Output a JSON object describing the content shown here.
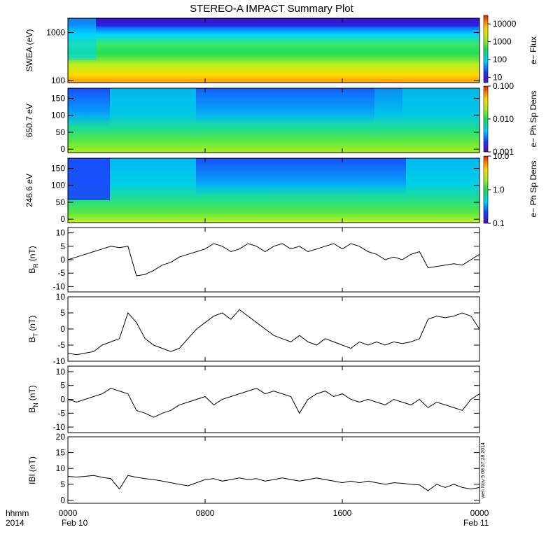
{
  "title": "STEREO-A IMPACT Summary Plot",
  "footer": {
    "time_label": "hhmm",
    "year_label": "2014",
    "date_start": "Feb 10",
    "date_end": "Feb 11",
    "x_ticks": [
      "0000",
      "0800",
      "1600",
      "0000"
    ]
  },
  "side_stamp": "wen Nov 5 08:37:28 2014",
  "chart_data": [
    {
      "id": "swea",
      "type": "heatmap",
      "ylabel": "SWEA (eV)",
      "yscale": "log",
      "yticks": [
        "1000",
        "100"
      ],
      "ytick_values": [
        1000,
        100
      ],
      "ylim": [
        90,
        2000
      ],
      "colorbar": {
        "label": "e− Flux",
        "scale": "log",
        "ticks": [
          "10000",
          "1000",
          "100",
          "10"
        ],
        "tick_values": [
          10000,
          1000,
          100,
          10
        ],
        "range": [
          5,
          30000
        ]
      },
      "colors": [
        "#5a0ca8",
        "#1a3cff",
        "#00d4ff",
        "#22dd55",
        "#a8f020",
        "#ffd800",
        "#ff8a00",
        "#e31a1c"
      ]
    },
    {
      "id": "pad650",
      "type": "heatmap",
      "ylabel": "650.7 eV",
      "ylim": [
        -10,
        180
      ],
      "yticks": [
        "150",
        "100",
        "50",
        "0"
      ],
      "ytick_values": [
        150,
        100,
        50,
        0
      ],
      "colorbar": {
        "label": "e− Ph Sp Dens",
        "scale": "log",
        "ticks": [
          "0.100",
          "0.010",
          "0.001"
        ],
        "tick_values": [
          0.1,
          0.01,
          0.001
        ],
        "range": [
          0.001,
          0.1
        ]
      }
    },
    {
      "id": "pad246",
      "type": "heatmap",
      "ylabel": "246.6 eV",
      "ylim": [
        -10,
        180
      ],
      "yticks": [
        "150",
        "100",
        "50",
        "0"
      ],
      "ytick_values": [
        150,
        100,
        50,
        0
      ],
      "colorbar": {
        "label": "e− Ph Sp Dens",
        "scale": "log",
        "ticks": [
          "10.0",
          "1.0",
          "0.1"
        ],
        "tick_values": [
          10,
          1,
          0.1
        ],
        "range": [
          0.1,
          10
        ]
      }
    },
    {
      "id": "br",
      "type": "line",
      "ylabel": "B",
      "ylabel_sub": "R",
      "ylabel_unit": "(nT)",
      "ylim": [
        -12,
        12
      ],
      "yticks": [
        "10",
        "5",
        "0",
        "-5",
        "-10"
      ],
      "ytick_values": [
        10,
        5,
        0,
        -5,
        -10
      ],
      "x": [
        0,
        0.5,
        1,
        1.5,
        2,
        2.5,
        3,
        3.5,
        4,
        4.5,
        5,
        5.5,
        6,
        6.5,
        7,
        7.5,
        8,
        8.5,
        9,
        9.5,
        10,
        10.5,
        11,
        11.5,
        12,
        12.5,
        13,
        13.5,
        14,
        14.5,
        15,
        15.5,
        16,
        16.5,
        17,
        17.5,
        18,
        18.5,
        19,
        19.5,
        20,
        20.5,
        21,
        21.5,
        22,
        22.5,
        23,
        23.5,
        24
      ],
      "values": [
        0,
        1,
        2,
        3,
        4,
        5,
        4.5,
        5,
        -6,
        -5.5,
        -4,
        -2,
        -1,
        1,
        2,
        3,
        4,
        6,
        5,
        3,
        4,
        6,
        5,
        3,
        5,
        6,
        4,
        5,
        3,
        4,
        5,
        6,
        4,
        6,
        5,
        3,
        2,
        0,
        1,
        0,
        2,
        3,
        -3,
        -2.5,
        -2,
        -1.5,
        -2,
        0,
        2
      ]
    },
    {
      "id": "bt",
      "type": "line",
      "ylabel": "B",
      "ylabel_sub": "T",
      "ylabel_unit": "(nT)",
      "ylim": [
        -10,
        10
      ],
      "yticks": [
        "10",
        "5",
        "0",
        "-5",
        "-10"
      ],
      "ytick_values": [
        10,
        5,
        0,
        -5,
        -10
      ],
      "x": [
        0,
        0.5,
        1,
        1.5,
        2,
        2.5,
        3,
        3.5,
        4,
        4.5,
        5,
        5.5,
        6,
        6.5,
        7,
        7.5,
        8,
        8.5,
        9,
        9.5,
        10,
        10.5,
        11,
        11.5,
        12,
        12.5,
        13,
        13.5,
        14,
        14.5,
        15,
        15.5,
        16,
        16.5,
        17,
        17.5,
        18,
        18.5,
        19,
        19.5,
        20,
        20.5,
        21,
        21.5,
        22,
        22.5,
        23,
        23.5,
        24
      ],
      "values": [
        -7.5,
        -8,
        -7.5,
        -7,
        -5,
        -4,
        -3,
        5,
        2,
        -3,
        -5,
        -6,
        -7,
        -6,
        -3,
        0,
        2,
        4,
        5,
        3,
        6,
        4,
        2,
        0,
        -2,
        -3,
        -4,
        -2,
        -4,
        -5,
        -3,
        -4,
        -5,
        -6,
        -4,
        -5,
        -4,
        -5,
        -4,
        -4.5,
        -4,
        -3,
        3,
        4,
        3.5,
        4,
        5,
        4,
        0
      ]
    },
    {
      "id": "bn",
      "type": "line",
      "ylabel": "B",
      "ylabel_sub": "N",
      "ylabel_unit": "(nT)",
      "ylim": [
        -12,
        12
      ],
      "yticks": [
        "10",
        "5",
        "0",
        "-5",
        "-10"
      ],
      "ytick_values": [
        10,
        5,
        0,
        -5,
        -10
      ],
      "x": [
        0,
        0.5,
        1,
        1.5,
        2,
        2.5,
        3,
        3.5,
        4,
        4.5,
        5,
        5.5,
        6,
        6.5,
        7,
        7.5,
        8,
        8.5,
        9,
        9.5,
        10,
        10.5,
        11,
        11.5,
        12,
        12.5,
        13,
        13.5,
        14,
        14.5,
        15,
        15.5,
        16,
        16.5,
        17,
        17.5,
        18,
        18.5,
        19,
        19.5,
        20,
        20.5,
        21,
        21.5,
        22,
        22.5,
        23,
        23.5,
        24
      ],
      "values": [
        0,
        -1,
        0,
        1,
        2,
        4,
        3,
        2,
        -4,
        -5,
        -6.5,
        -5,
        -4,
        -2,
        -1,
        0,
        1,
        -2,
        0,
        1,
        2,
        3,
        4,
        2,
        3,
        2,
        1,
        -5,
        0,
        2,
        3,
        1,
        2,
        0,
        -1,
        0,
        -1,
        -2,
        0,
        -1,
        -2,
        0,
        -3,
        -1,
        -2,
        -3,
        -4,
        0,
        2
      ]
    },
    {
      "id": "bmag",
      "type": "line",
      "ylabel": "IBI",
      "ylabel_unit": "(nT)",
      "ylim": [
        -1,
        20
      ],
      "yticks": [
        "20",
        "15",
        "10",
        "5",
        "0"
      ],
      "ytick_values": [
        20,
        15,
        10,
        5,
        0
      ],
      "x": [
        0,
        0.5,
        1,
        1.5,
        2,
        2.5,
        3,
        3.5,
        4,
        4.5,
        5,
        5.5,
        6,
        6.5,
        7,
        7.5,
        8,
        8.5,
        9,
        9.5,
        10,
        10.5,
        11,
        11.5,
        12,
        12.5,
        13,
        13.5,
        14,
        14.5,
        15,
        15.5,
        16,
        16.5,
        17,
        17.5,
        18,
        18.5,
        19,
        19.5,
        20,
        20.5,
        21,
        21.5,
        22,
        22.5,
        23,
        23.5,
        24
      ],
      "values": [
        7.5,
        7.3,
        7.5,
        7.8,
        7.2,
        6.8,
        3.5,
        7.8,
        7.2,
        6.8,
        6.5,
        6,
        5.5,
        5,
        4.5,
        5.5,
        6.5,
        6.8,
        6,
        6.5,
        7,
        6.5,
        6.8,
        6,
        6.5,
        7,
        6.5,
        6,
        6.5,
        7,
        6.5,
        6,
        5.5,
        6,
        5.5,
        6,
        5.5,
        5,
        5.5,
        5.3,
        5,
        4.8,
        3,
        5,
        4,
        5,
        4,
        3.5,
        4
      ]
    }
  ]
}
